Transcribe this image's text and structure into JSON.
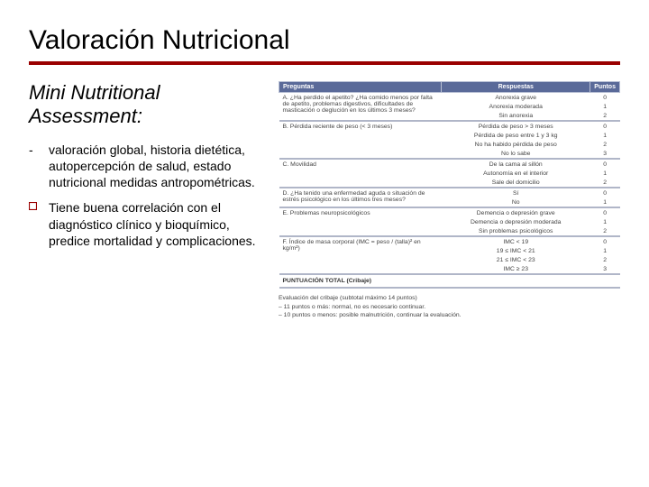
{
  "title": "Valoración Nutricional",
  "subtitle": "Mini Nutritional Assessment:",
  "bullets": [
    {
      "marker": "-",
      "text": "valoración global, historia dietética, autopercepción de salud, estado nutricional medidas antropométricas."
    },
    {
      "marker": "square",
      "text": "Tiene buena correlación con el diagnóstico clínico y bioquímico, predice mortalidad y complicaciones."
    }
  ],
  "table": {
    "headers": {
      "q": "Preguntas",
      "r": "Respuestas",
      "p": "Puntos"
    },
    "colors": {
      "header_bg": "#5a6a99",
      "header_fg": "#ffffff",
      "sep": "#b0b6c8"
    },
    "sections": [
      {
        "q": "A. ¿Ha perdido el apetito? ¿Ha comido menos por falta de apetito, problemas digestivos, dificultades de masticación o deglución en los últimos 3 meses?",
        "rows": [
          {
            "r": "Anorexia grave",
            "p": "0"
          },
          {
            "r": "Anorexia moderada",
            "p": "1"
          },
          {
            "r": "Sin anorexia",
            "p": "2"
          }
        ]
      },
      {
        "q": "B. Pérdida reciente de peso (< 3 meses)",
        "rows": [
          {
            "r": "Pérdida de peso > 3 meses",
            "p": "0"
          },
          {
            "r": "Pérdida de peso entre 1 y 3 kg",
            "p": "1"
          },
          {
            "r": "No ha habido pérdida de peso",
            "p": "2"
          },
          {
            "r": "No lo sabe",
            "p": "3"
          }
        ]
      },
      {
        "q": "C. Movilidad",
        "rows": [
          {
            "r": "De la cama al sillón",
            "p": "0"
          },
          {
            "r": "Autonomía en el interior",
            "p": "1"
          },
          {
            "r": "Sale del domicilio",
            "p": "2"
          }
        ]
      },
      {
        "q": "D. ¿Ha tenido una enfermedad aguda o situación de estrés psicológico en los últimos tres meses?",
        "rows": [
          {
            "r": "Sí",
            "p": "0"
          },
          {
            "r": "No",
            "p": "1"
          }
        ]
      },
      {
        "q": "E. Problemas neuropsicológicos",
        "rows": [
          {
            "r": "Demencia o depresión grave",
            "p": "0"
          },
          {
            "r": "Demencia o depresión moderada",
            "p": "1"
          },
          {
            "r": "Sin problemas psicológicos",
            "p": "2"
          }
        ]
      },
      {
        "q": "F. Índice de masa corporal (IMC = peso / (talla)² en kg/m²)",
        "rows": [
          {
            "r": "IMC < 19",
            "p": "0"
          },
          {
            "r": "19 ≤ IMC < 21",
            "p": "1"
          },
          {
            "r": "21 ≤ IMC < 23",
            "p": "2"
          },
          {
            "r": "IMC ≥ 23",
            "p": "3"
          }
        ]
      }
    ],
    "total_label": "PUNTUACIÓN TOTAL (Cribaje)"
  },
  "evaluation": {
    "title": "Evaluación del cribaje (subtotal máximo 14 puntos)",
    "lines": [
      "– 11 puntos o más: normal, no es necesario continuar.",
      "– 10 puntos o menos: posible malnutrición, continuar la evaluación."
    ]
  }
}
